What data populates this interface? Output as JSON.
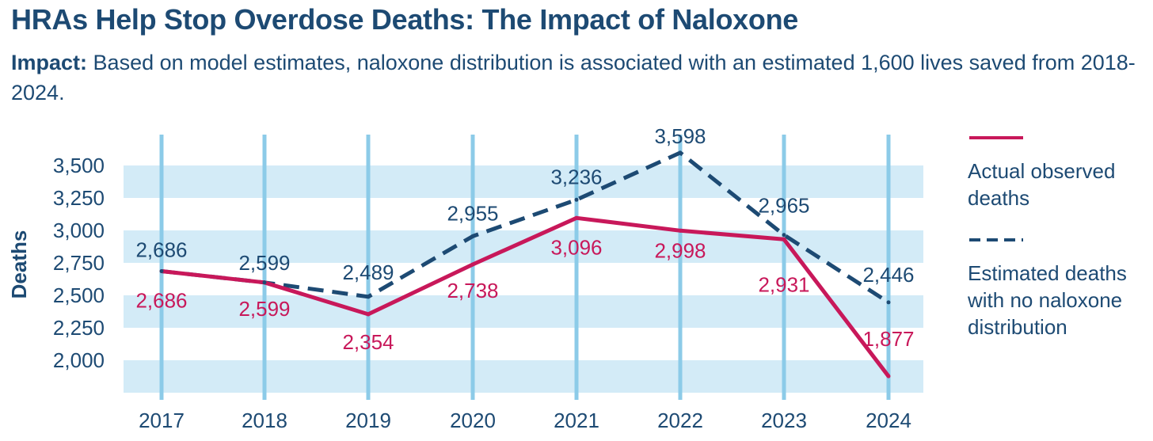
{
  "header": {
    "title": "HRAs Help Stop Overdose Deaths: The Impact of Naloxone",
    "subtitle_bold": "Impact:",
    "subtitle_text": "Based on model estimates, naloxone distribution is associated with an estimated 1,600 lives saved from 2018-2024."
  },
  "chart_data": {
    "type": "line",
    "categories": [
      "2017",
      "2018",
      "2019",
      "2020",
      "2021",
      "2022",
      "2023",
      "2024"
    ],
    "ylabel": "Deaths",
    "xlabel": "",
    "yticks": [
      "2,000",
      "2,250",
      "2,500",
      "2,750",
      "3,000",
      "3,250",
      "3,500"
    ],
    "ylim": [
      1750,
      3650
    ],
    "grid": "horizontal bands and vertical year lines",
    "legend_position": "right",
    "series": [
      {
        "name": "Actual observed deaths",
        "values": [
          2686,
          2599,
          2354,
          2738,
          3096,
          2998,
          2931,
          1877
        ],
        "labels": [
          "2,686",
          "2,599",
          "2,354",
          "2,738",
          "3,096",
          "2,998",
          "2,931",
          "1,877"
        ],
        "color": "#c8185a",
        "style": "solid"
      },
      {
        "name": "Estimated deaths with no naloxone distribution",
        "values": [
          2686,
          2599,
          2489,
          2955,
          3236,
          3598,
          2965,
          2446
        ],
        "labels": [
          "2,686",
          "2,599",
          "2,489",
          "2,955",
          "3,236",
          "3,598",
          "2,965",
          "2,446"
        ],
        "color": "#1d4a73",
        "style": "dashed"
      }
    ]
  },
  "legend": {
    "items": [
      {
        "label_line1": "Actual observed",
        "label_line2": "deaths",
        "label_line3": ""
      },
      {
        "label_line1": "Estimated deaths",
        "label_line2": "with no naloxone",
        "label_line3": "distribution"
      }
    ]
  },
  "colors": {
    "navy": "#1d4a73",
    "crimson": "#c8185a",
    "band": "#d3ebf7",
    "vline": "#8ccbe8"
  }
}
